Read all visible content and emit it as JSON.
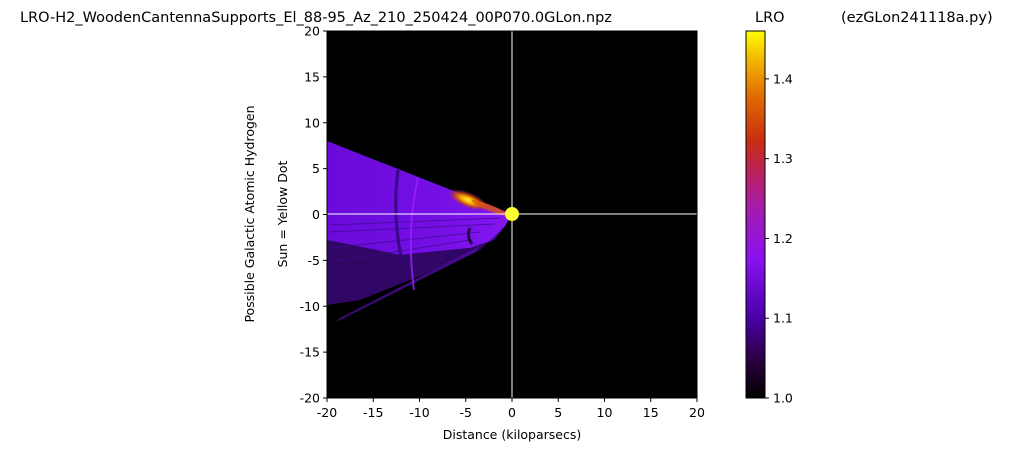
{
  "chart_data": {
    "type": "heatmap",
    "title_left": "LRO-H2_WoodenCantennaSupports_El_88-95_Az_210_250424_00P070.0GLon.npz",
    "title_center": "LRO",
    "title_right": "(ezGLon241118a.py)",
    "xlabel": "Distance (kiloparsecs)",
    "ylabel_line1": "Possible Galactic Atomic Hydrogen",
    "ylabel_line2": "Sun = Yellow Dot",
    "xlim": [
      -20,
      20
    ],
    "ylim": [
      -20,
      20
    ],
    "xticks": [
      "-20",
      "-15",
      "-10",
      "-5",
      "0",
      "5",
      "10",
      "15",
      "20"
    ],
    "yticks": [
      "20",
      "15",
      "10",
      "5",
      "0",
      "-5",
      "-10",
      "-15",
      "-20"
    ],
    "background": "#000000",
    "crosshair_color": "#ffffff",
    "sun": {
      "x": 0,
      "y": 0,
      "color": "#ffff33"
    },
    "emission_wedge": {
      "apex": [
        0,
        0
      ],
      "upper_edge": [
        -20,
        8.0
      ],
      "lower_edge_end": [
        -20,
        -12.0
      ],
      "hot_spot": {
        "x": -5.0,
        "y": 1.8,
        "value": 1.45
      }
    },
    "colorbar": {
      "label": "LRO",
      "colormap": "gnuplot",
      "range": [
        1.0,
        1.46
      ],
      "ticks": [
        "1.0",
        "1.1",
        "1.2",
        "1.3",
        "1.4"
      ],
      "tick_values": [
        1.0,
        1.1,
        1.2,
        1.3,
        1.4
      ]
    }
  }
}
